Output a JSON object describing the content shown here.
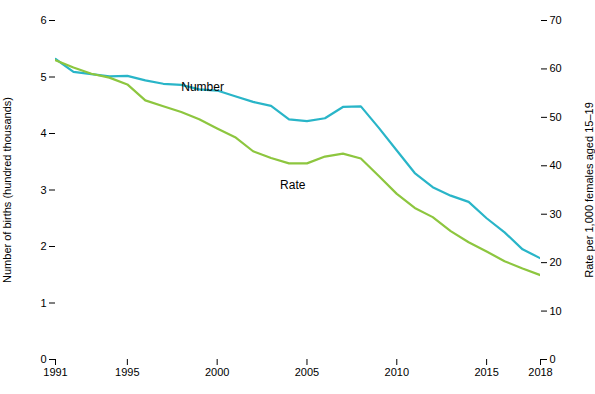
{
  "chart_data": {
    "type": "line",
    "ylabel": "Number of births (hundred thousands)",
    "y2label": "Rate per 1,000 females aged 15–19",
    "x": [
      1991,
      1992,
      1993,
      1994,
      1995,
      1996,
      1997,
      1998,
      1999,
      2000,
      2001,
      2002,
      2003,
      2004,
      2005,
      2006,
      2007,
      2008,
      2009,
      2010,
      2011,
      2012,
      2013,
      2014,
      2015,
      2016,
      2017,
      2018
    ],
    "xlim": [
      1991,
      2018
    ],
    "xticks": [
      1991,
      1995,
      2000,
      2005,
      2010,
      2015,
      2018
    ],
    "ylim": [
      0,
      6
    ],
    "yticks": [
      0,
      1,
      2,
      3,
      4,
      5,
      6
    ],
    "y2lim": [
      0,
      70
    ],
    "y2ticks": [
      0,
      10,
      20,
      30,
      40,
      50,
      60,
      70
    ],
    "grid": false,
    "series": [
      {
        "name": "Number",
        "color": "#29b5c8",
        "values": [
          5.32,
          5.09,
          5.05,
          5.01,
          5.02,
          4.94,
          4.88,
          4.86,
          4.78,
          4.76,
          4.66,
          4.56,
          4.49,
          4.25,
          4.22,
          4.27,
          4.47,
          4.48,
          4.1,
          3.7,
          3.3,
          3.05,
          2.9,
          2.79,
          2.5,
          2.25,
          1.95,
          1.79
        ]
      },
      {
        "name": "Rate",
        "color": "#8dc63f",
        "axis": "y2",
        "values": [
          61.8,
          60.3,
          59.0,
          58.2,
          56.8,
          53.5,
          52.3,
          51.1,
          49.6,
          47.7,
          45.9,
          43.0,
          41.6,
          40.5,
          40.5,
          41.9,
          42.5,
          41.5,
          37.9,
          34.2,
          31.3,
          29.4,
          26.5,
          24.2,
          22.3,
          20.3,
          18.8,
          17.4
        ]
      }
    ],
    "annotations": [
      {
        "text": "Number",
        "x": 1998.0,
        "y": 4.82
      },
      {
        "text": "Rate",
        "x": 2003.5,
        "y": 3.08
      }
    ]
  }
}
